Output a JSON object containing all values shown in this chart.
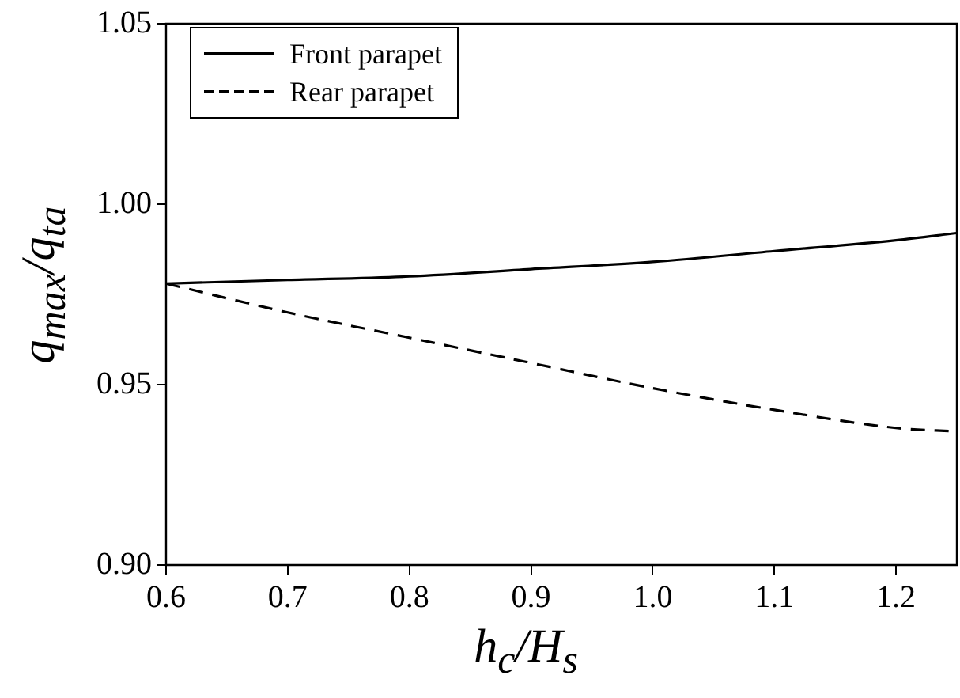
{
  "chart_data": {
    "type": "line",
    "xlabel": "h$_{c}$/H$_{s}$",
    "ylabel": "q$_{max}$/q$_{ta}$",
    "x": [
      0.6,
      0.7,
      0.8,
      0.9,
      1.0,
      1.1,
      1.2,
      1.25
    ],
    "series": [
      {
        "name": "Front parapet",
        "color": "#000000",
        "line_style": "solid",
        "values": [
          0.978,
          0.979,
          0.98,
          0.982,
          0.984,
          0.987,
          0.99,
          0.992
        ]
      },
      {
        "name": "Rear parapet",
        "color": "#000000",
        "line_style": "dashed",
        "values": [
          0.978,
          0.97,
          0.963,
          0.956,
          0.949,
          0.943,
          0.938,
          0.937
        ]
      }
    ],
    "xlim": [
      0.6,
      1.25
    ],
    "xticks": [
      0.6,
      0.7,
      0.8,
      0.9,
      {
        "value": 1.0,
        "label": "1.0"
      },
      1.1,
      1.2
    ],
    "ylim": [
      0.9,
      1.05
    ],
    "yticks": [
      {
        "value": 0.9,
        "label": "0.90"
      },
      0.95,
      {
        "value": 1.0,
        "label": "1.00"
      },
      1.05
    ],
    "grid": false,
    "legend": "top left",
    "marker": "none"
  }
}
